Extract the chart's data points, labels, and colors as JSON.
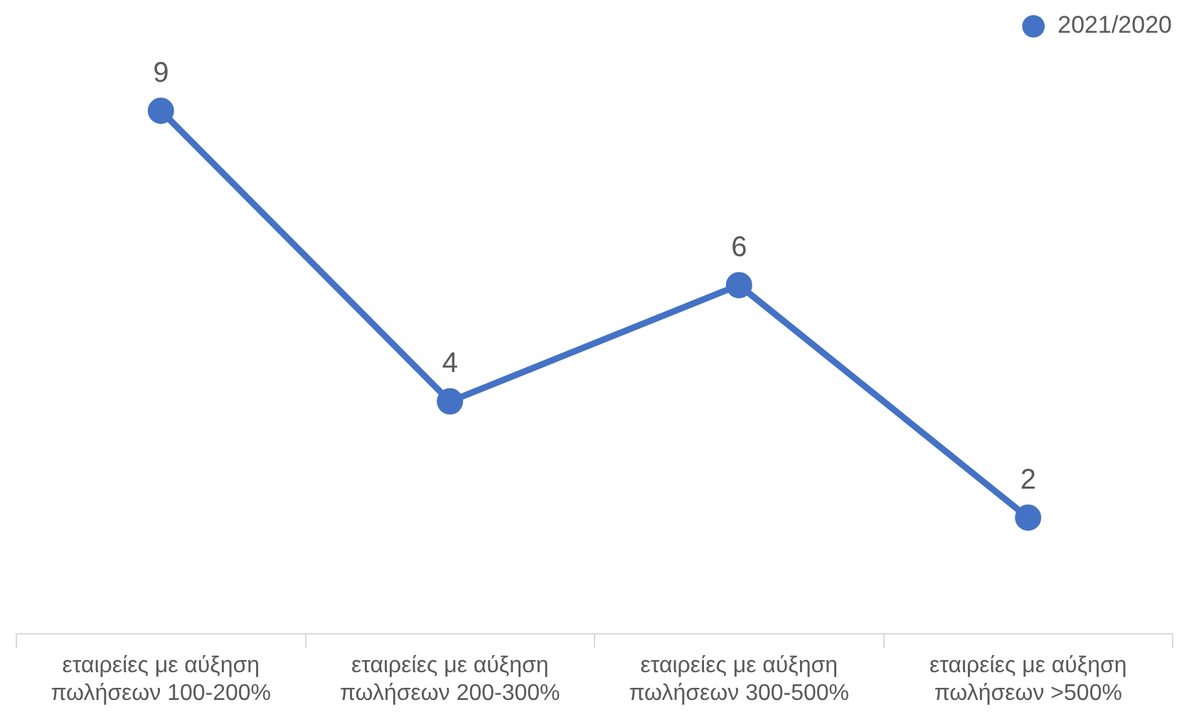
{
  "chart_data": {
    "type": "line",
    "categories": [
      "εταιρείες με αύξηση\nπωλήσεων 100-200%",
      "εταιρείες με αύξηση\nπωλήσεων 200-300%",
      "εταιρείες με αύξηση\nπωλήσεων 300-500%",
      "εταιρείες με αύξηση\nπωλήσεων >500%"
    ],
    "series": [
      {
        "name": "2021/2020",
        "color": "#4472c4",
        "values": [
          9,
          4,
          6,
          2
        ]
      }
    ],
    "data_labels": true,
    "legend": "top right",
    "marker": "circle",
    "line_style": "solid",
    "grid": false
  }
}
